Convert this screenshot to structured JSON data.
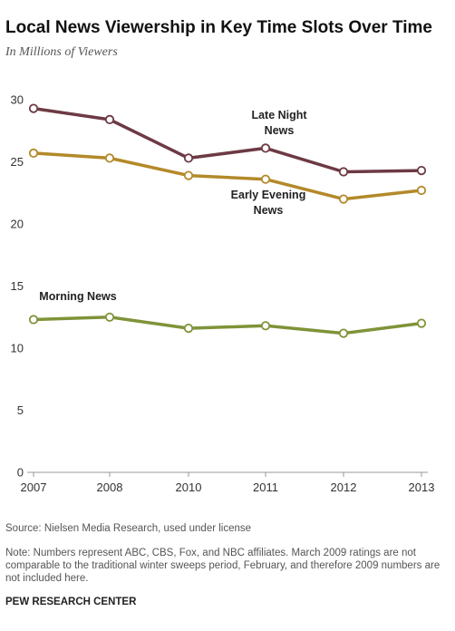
{
  "chart_data": {
    "type": "line",
    "title": "Local News Viewership in Key Time Slots Over Time",
    "subtitle": "In Millions of Viewers",
    "x": [
      "2007",
      "2008",
      "2010",
      "2011",
      "2012",
      "2013"
    ],
    "yticks": [
      0,
      5,
      10,
      15,
      20,
      25,
      30
    ],
    "ylim": [
      0,
      30
    ],
    "grid": false,
    "series": [
      {
        "name": "Late Night News",
        "label_lines": [
          "Late Night",
          "News"
        ],
        "color": "#6d3a44",
        "values": [
          29.3,
          28.4,
          25.3,
          26.1,
          24.2,
          24.3
        ]
      },
      {
        "name": "Early Evening News",
        "label_lines": [
          "Early Evening",
          "News"
        ],
        "color": "#b38a2a",
        "values": [
          25.7,
          25.3,
          23.9,
          23.6,
          22.0,
          22.7
        ]
      },
      {
        "name": "Morning News",
        "label_lines": [
          "Morning News"
        ],
        "color": "#7f9339",
        "values": [
          12.3,
          12.5,
          11.6,
          11.8,
          11.2,
          12.0
        ]
      }
    ]
  },
  "footer": {
    "source": "Source: Nielsen Media Research, used under license",
    "note": "Note: Numbers represent ABC, CBS, Fox, and NBC affiliates. March 2009 ratings are not comparable to the traditional winter sweeps period, February, and therefore 2009 numbers are not included here.",
    "credit": "PEW RESEARCH CENTER"
  }
}
